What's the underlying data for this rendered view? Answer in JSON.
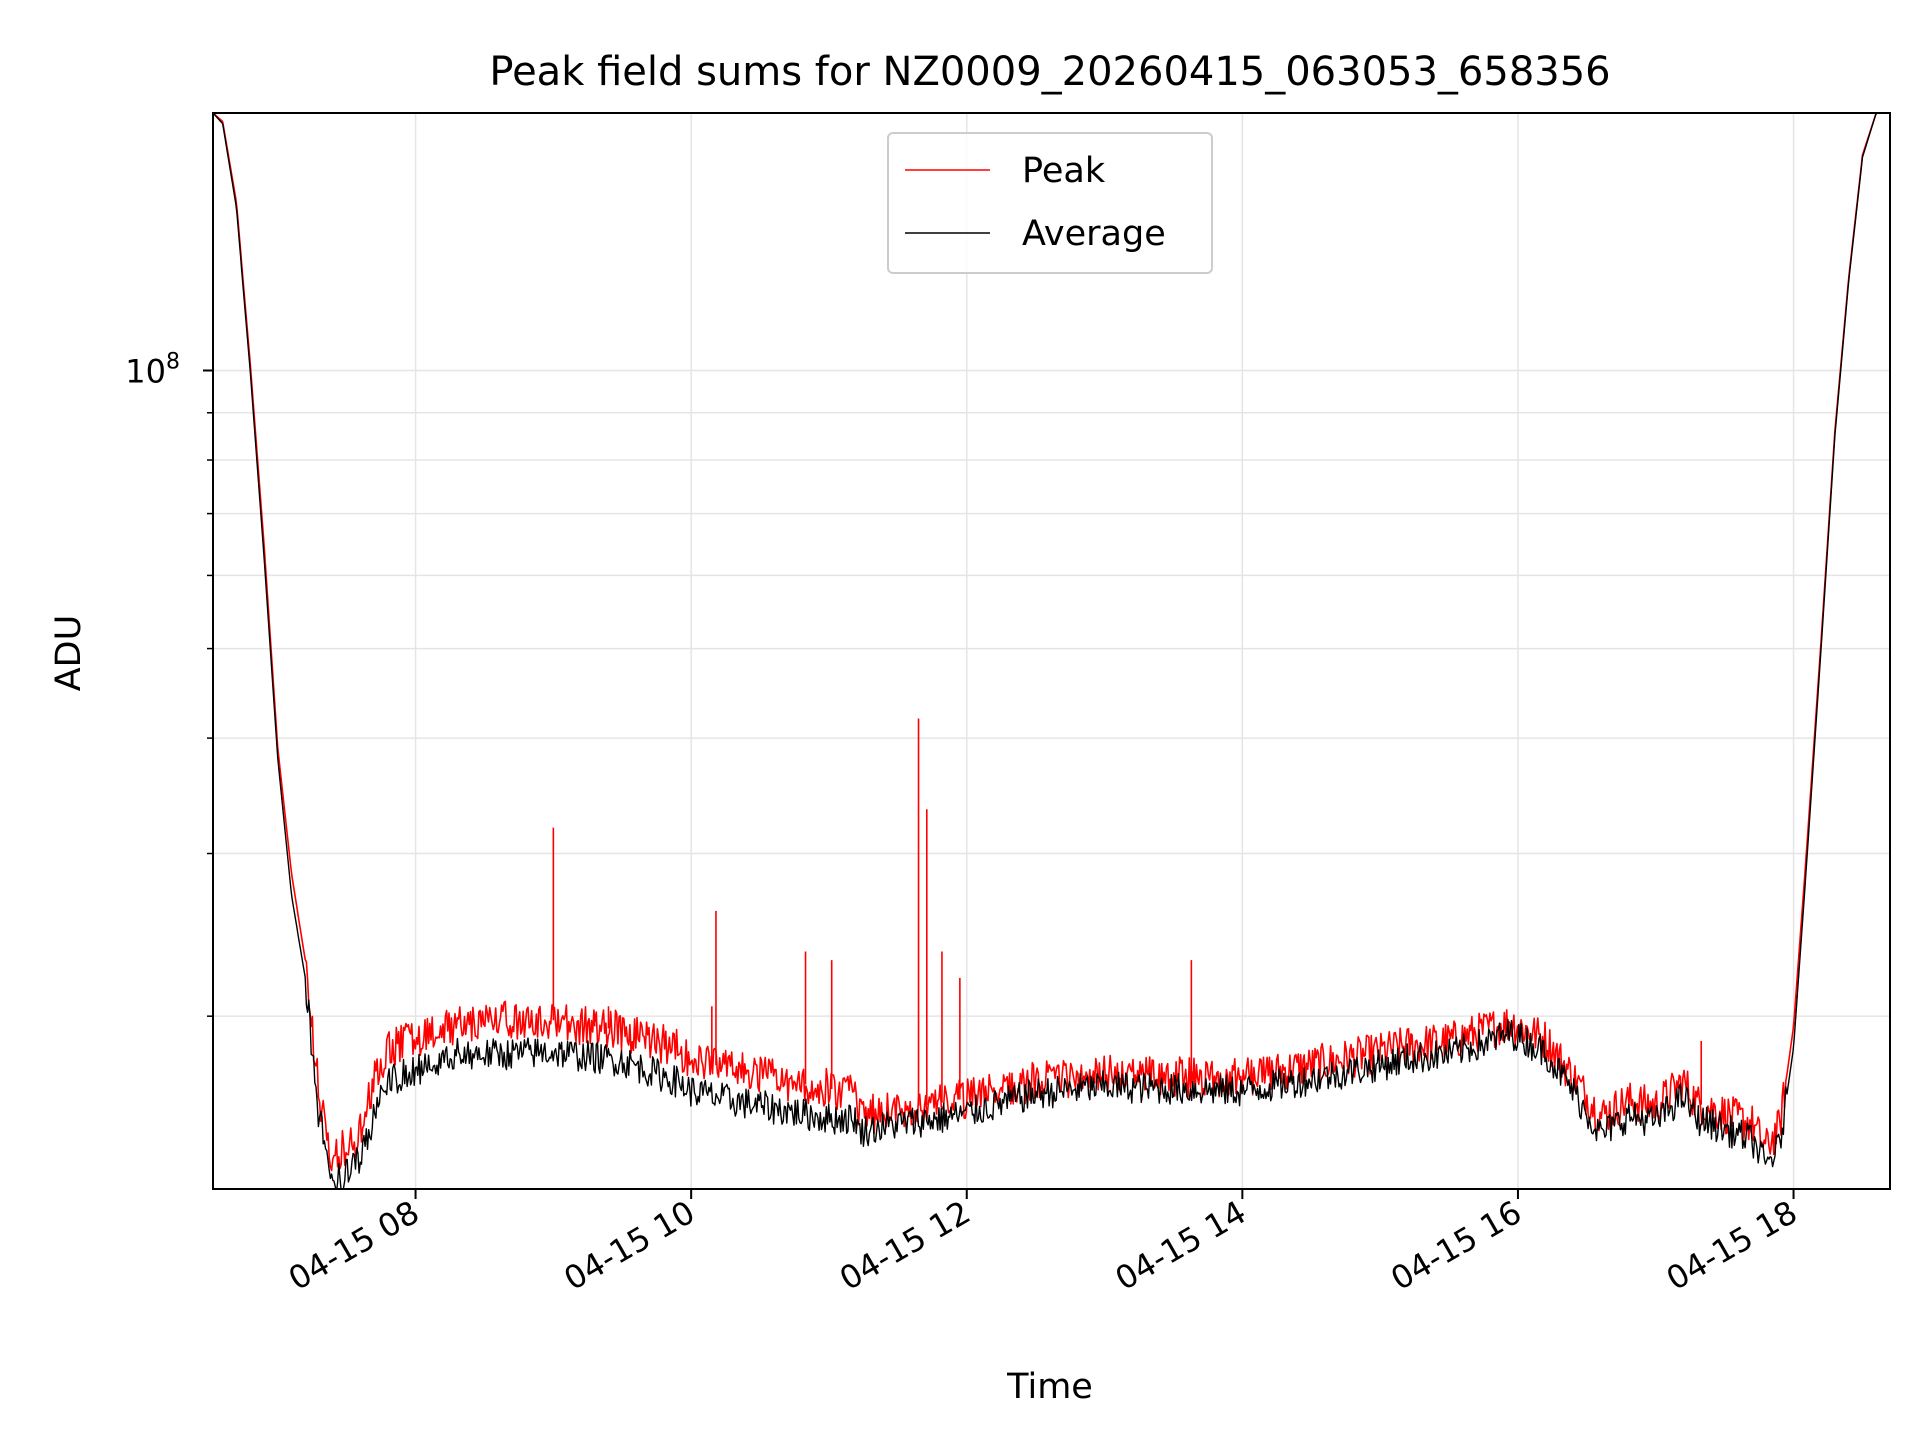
{
  "chart_data": {
    "type": "line",
    "title": "Peak field sums for NZ0009_20260415_063053_658356",
    "xlabel": "Time",
    "ylabel": "ADU",
    "y_scale": "log",
    "ylim": [
      13000000,
      190000000
    ],
    "y_major_tick": {
      "value": 100000000,
      "label_base": "10",
      "label_exp": "8"
    },
    "y_minor_ticks": [
      20000000,
      30000000,
      40000000,
      50000000,
      60000000,
      70000000,
      80000000,
      90000000
    ],
    "x_unit": "hours since 2026-04-15 00:00",
    "xlim": [
      6.53,
      18.7
    ],
    "x_ticks": [
      {
        "value": 8,
        "label": "04-15 08"
      },
      {
        "value": 10,
        "label": "04-15 10"
      },
      {
        "value": 12,
        "label": "04-15 12"
      },
      {
        "value": 14,
        "label": "04-15 14"
      },
      {
        "value": 16,
        "label": "04-15 16"
      },
      {
        "value": 18,
        "label": "04-15 18"
      }
    ],
    "grid": true,
    "legend": {
      "placement": "top-center",
      "entries": [
        {
          "name": "Peak",
          "color": "#ff0000"
        },
        {
          "name": "Average",
          "color": "#000000"
        }
      ]
    },
    "series": [
      {
        "name": "Average",
        "color": "#000000",
        "noise_amplitude": 0.04,
        "x": [
          6.53,
          6.6,
          6.7,
          6.8,
          6.9,
          7.0,
          7.1,
          7.2,
          7.3,
          7.4,
          7.5,
          7.6,
          7.7,
          7.8,
          8.0,
          8.3,
          8.6,
          9.0,
          9.5,
          9.9,
          10.0,
          10.3,
          10.7,
          11.0,
          11.2,
          11.21,
          11.5,
          11.8,
          12.0,
          12.5,
          13.0,
          13.5,
          14.0,
          14.5,
          15.0,
          15.2,
          15.5,
          15.8,
          15.95,
          16.2,
          16.4,
          16.6,
          16.8,
          17.0,
          17.2,
          17.3,
          17.5,
          17.7,
          17.8,
          17.9,
          18.0,
          18.1,
          18.2,
          18.3,
          18.4,
          18.5,
          18.6,
          18.7
        ],
        "y": [
          190000000,
          185000000,
          150000000,
          100000000,
          63000000,
          38000000,
          27000000,
          22000000,
          15500000,
          13200000,
          13500000,
          14000000,
          15700000,
          17000000,
          17500000,
          18200000,
          18200000,
          18300000,
          17900000,
          17000000,
          16600000,
          16200000,
          15800000,
          15500000,
          15500000,
          15000000,
          15300000,
          15500000,
          15700000,
          16500000,
          16800000,
          16700000,
          16600000,
          17100000,
          17700000,
          18000000,
          18200000,
          18800000,
          19200000,
          18300000,
          16600000,
          14900000,
          15600000,
          15400000,
          16400000,
          15500000,
          15100000,
          14700000,
          13800000,
          14500000,
          18500000,
          30000000,
          50000000,
          85000000,
          125000000,
          170000000,
          190000000,
          190000000
        ]
      },
      {
        "name": "Peak",
        "color": "#ff0000",
        "noise_amplitude": 0.05,
        "x": [
          6.53,
          6.6,
          6.7,
          6.8,
          6.9,
          7.0,
          7.1,
          7.2,
          7.3,
          7.4,
          7.5,
          7.6,
          7.7,
          7.8,
          8.0,
          8.3,
          8.6,
          9.0,
          9.5,
          9.9,
          10.0,
          10.3,
          10.7,
          11.0,
          11.2,
          11.21,
          11.5,
          11.8,
          12.0,
          12.5,
          13.0,
          13.5,
          14.0,
          14.5,
          15.0,
          15.2,
          15.5,
          15.8,
          15.95,
          16.2,
          16.4,
          16.6,
          16.8,
          17.0,
          17.2,
          17.3,
          17.5,
          17.7,
          17.8,
          17.9,
          18.0,
          18.1,
          18.2,
          18.3,
          18.4,
          18.5,
          18.6,
          18.7
        ],
        "y": [
          190000000,
          186000000,
          152000000,
          102000000,
          65000000,
          39000000,
          28500000,
          23000000,
          16500000,
          14000000,
          14500000,
          15000000,
          17000000,
          18500000,
          19000000,
          19500000,
          19800000,
          19800000,
          19300000,
          18500000,
          18000000,
          17500000,
          17000000,
          16700000,
          16500000,
          15600000,
          15900000,
          16100000,
          16300000,
          17000000,
          17300000,
          17200000,
          17200000,
          17700000,
          18300000,
          18600000,
          18800000,
          19400000,
          19700000,
          18900000,
          17200000,
          15600000,
          16200000,
          16000000,
          17000000,
          16100000,
          15700000,
          15300000,
          14400000,
          15200000,
          19500000,
          31000000,
          51000000,
          86000000,
          126000000,
          171000000,
          190000000,
          190000000
        ],
        "spikes": [
          {
            "x": 9.0,
            "y": 32000000
          },
          {
            "x": 9.3,
            "y": 20000000
          },
          {
            "x": 9.4,
            "y": 20500000
          },
          {
            "x": 10.15,
            "y": 20500000
          },
          {
            "x": 10.18,
            "y": 26000000
          },
          {
            "x": 10.83,
            "y": 23500000
          },
          {
            "x": 11.02,
            "y": 23000000
          },
          {
            "x": 11.65,
            "y": 42000000
          },
          {
            "x": 11.71,
            "y": 33500000
          },
          {
            "x": 11.82,
            "y": 23500000
          },
          {
            "x": 11.95,
            "y": 22000000
          },
          {
            "x": 13.63,
            "y": 23000000
          },
          {
            "x": 15.23,
            "y": 19000000
          },
          {
            "x": 17.33,
            "y": 18800000
          }
        ]
      }
    ]
  }
}
